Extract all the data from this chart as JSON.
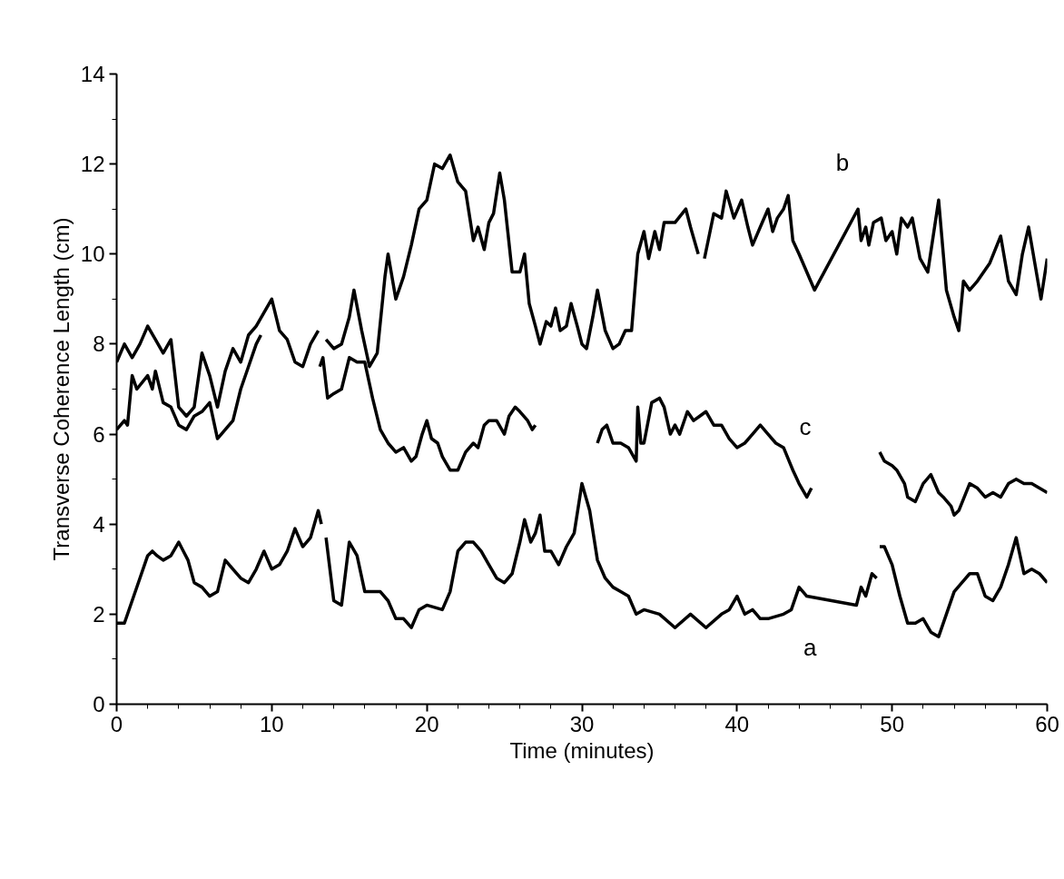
{
  "chart_data": {
    "type": "line",
    "xlabel": "Time (minutes)",
    "ylabel": "Transverse Coherence Length (cm)",
    "xlim": [
      0,
      60
    ],
    "xticks": [
      0,
      10,
      20,
      30,
      40,
      50,
      60
    ],
    "ylim": [
      0,
      14
    ],
    "yticks": [
      0,
      2,
      4,
      6,
      8,
      10,
      12,
      14
    ],
    "grid": false,
    "marker": "none",
    "line_style": "solid",
    "series": [
      {
        "name": "a",
        "color": "#000000",
        "x": [
          0,
          0.5,
          1,
          1.5,
          2,
          2.3,
          2.6,
          3,
          3.5,
          4,
          4.3,
          4.6,
          5,
          5.5,
          6,
          6.5,
          7,
          7.5,
          8,
          8.5,
          9,
          9.5,
          10,
          10.5,
          11,
          11.5,
          12,
          12.5,
          13,
          13.2,
          13.35,
          13.5,
          14,
          14.5,
          15,
          15.5,
          16,
          16.5,
          17,
          17.5,
          18,
          18.5,
          19,
          19.5,
          20,
          21,
          21.5,
          22,
          22.5,
          23,
          23.5,
          24,
          24.5,
          25,
          25.5,
          26,
          26.3,
          26.7,
          27,
          27.3,
          27.6,
          28,
          28.5,
          29,
          29.5,
          30,
          30.5,
          31,
          31.5,
          32,
          32.5,
          33,
          33.5,
          34,
          35,
          36,
          37,
          38,
          39,
          39.5,
          40,
          40.5,
          41,
          41.5,
          42,
          43,
          43.5,
          44,
          44.5,
          47.7,
          48,
          48.3,
          48.7,
          49,
          49.1,
          49.2,
          49.5,
          50,
          50.5,
          51,
          51.5,
          52,
          52.5,
          53,
          53.5,
          54,
          54.5,
          55,
          55.5,
          56,
          56.5,
          57,
          57.5,
          58,
          58.5,
          59,
          59.5,
          60
        ],
        "values": [
          1.8,
          1.8,
          2.3,
          2.8,
          3.3,
          3.4,
          3.3,
          3.2,
          3.3,
          3.6,
          3.4,
          3.2,
          2.7,
          2.6,
          2.4,
          2.5,
          3.2,
          3.0,
          2.8,
          2.7,
          3.0,
          3.4,
          3.0,
          3.1,
          3.4,
          3.9,
          3.5,
          3.7,
          4.3,
          4.0,
          null,
          3.7,
          2.3,
          2.2,
          3.6,
          3.3,
          2.5,
          2.5,
          2.5,
          2.3,
          1.9,
          1.9,
          1.7,
          2.1,
          2.2,
          2.1,
          2.5,
          3.4,
          3.6,
          3.6,
          3.4,
          3.1,
          2.8,
          2.7,
          2.9,
          3.6,
          4.1,
          3.6,
          3.8,
          4.2,
          3.4,
          3.4,
          3.1,
          3.5,
          3.8,
          4.9,
          4.3,
          3.2,
          2.8,
          2.6,
          2.5,
          2.4,
          2.0,
          2.1,
          2.0,
          1.7,
          2.0,
          1.7,
          2.0,
          2.1,
          2.4,
          2.0,
          2.1,
          1.9,
          1.9,
          2.0,
          2.1,
          2.6,
          2.4,
          2.2,
          2.6,
          2.4,
          2.9,
          2.8,
          null,
          3.5,
          3.5,
          3.1,
          2.4,
          1.8,
          1.8,
          1.9,
          1.6,
          1.5,
          2.0,
          2.5,
          2.7,
          2.9,
          2.9,
          2.4,
          2.3,
          2.6,
          3.1,
          3.7,
          2.9,
          3.0,
          2.9,
          2.7
        ]
      },
      {
        "name": "b",
        "color": "#000000",
        "x": [
          0,
          0.5,
          1,
          1.5,
          2,
          2.5,
          3,
          3.5,
          4,
          4.5,
          5,
          5.5,
          6,
          6.5,
          7,
          7.5,
          8,
          8.5,
          9,
          10,
          10.5,
          11,
          11.5,
          12,
          12.5,
          13,
          13.25,
          13.5,
          14,
          14.5,
          15,
          15.3,
          15.8,
          16.3,
          16.8,
          17.3,
          17.5,
          18,
          18.5,
          19,
          19.5,
          20,
          20.5,
          21,
          21.5,
          22,
          22.5,
          23,
          23.3,
          23.7,
          24,
          24.3,
          24.7,
          25,
          25.5,
          26,
          26.3,
          26.6,
          27,
          27.3,
          27.7,
          28,
          28.3,
          28.6,
          29,
          29.3,
          29.7,
          30,
          30.3,
          30.7,
          31,
          31.5,
          32,
          32.4,
          32.8,
          33.2,
          33.6,
          34,
          34.3,
          34.7,
          35,
          35.3,
          36,
          36.7,
          37,
          37.5,
          37.7,
          37.9,
          38.5,
          39,
          39.3,
          39.8,
          40.3,
          40.7,
          41,
          41.5,
          42,
          42.3,
          42.6,
          43,
          43.3,
          43.6,
          44,
          45,
          47.8,
          48,
          48.3,
          48.5,
          48.8,
          49.3,
          49.6,
          50,
          50.3,
          50.6,
          51,
          51.3,
          51.8,
          52.3,
          53,
          53.5,
          54,
          54.3,
          54.6,
          55,
          55.5,
          56.3,
          57,
          57.5,
          58,
          58.4,
          58.8,
          59.2,
          59.6,
          60
        ],
        "values": [
          7.6,
          8.0,
          7.7,
          8.0,
          8.4,
          8.1,
          7.8,
          8.1,
          6.6,
          6.4,
          6.6,
          7.8,
          7.3,
          6.6,
          7.4,
          7.9,
          7.6,
          8.2,
          8.4,
          9.0,
          8.3,
          8.1,
          7.6,
          7.5,
          8.0,
          8.3,
          null,
          8.1,
          7.9,
          8.0,
          8.6,
          9.2,
          8.3,
          7.5,
          7.8,
          9.5,
          10.0,
          9.0,
          9.5,
          10.2,
          11.0,
          11.2,
          12.0,
          11.9,
          12.2,
          11.6,
          11.4,
          10.3,
          10.6,
          10.1,
          10.7,
          10.9,
          11.8,
          11.2,
          9.6,
          9.6,
          10.0,
          8.9,
          8.4,
          8.0,
          8.5,
          8.4,
          8.8,
          8.3,
          8.4,
          8.9,
          8.4,
          8.0,
          7.9,
          8.6,
          9.2,
          8.3,
          7.9,
          8.0,
          8.3,
          8.3,
          10.0,
          10.5,
          9.9,
          10.5,
          10.1,
          10.7,
          10.7,
          11.0,
          10.6,
          10.0,
          null,
          9.9,
          10.9,
          10.8,
          11.4,
          10.8,
          11.2,
          10.6,
          10.2,
          10.6,
          11.0,
          10.5,
          10.8,
          11.0,
          11.3,
          10.3,
          10.0,
          9.2,
          11.0,
          10.3,
          10.6,
          10.2,
          10.7,
          10.8,
          10.3,
          10.5,
          10.0,
          10.8,
          10.6,
          10.8,
          9.9,
          9.6,
          11.2,
          9.2,
          8.6,
          8.3,
          9.4,
          9.2,
          9.4,
          9.8,
          10.4,
          9.4,
          9.1,
          10.0,
          10.6,
          9.8,
          9.0,
          9.9
        ]
      },
      {
        "name": "c",
        "color": "#000000",
        "x": [
          0,
          0.5,
          0.7,
          1,
          1.3,
          2,
          2.3,
          2.5,
          3,
          3.5,
          4,
          4.5,
          5,
          5.5,
          6,
          6.5,
          7,
          7.5,
          8,
          8.5,
          9,
          9.3,
          11,
          13.1,
          13.3,
          13.6,
          14,
          14.5,
          15,
          15.5,
          16,
          16.5,
          17,
          17.5,
          18,
          18.5,
          19,
          19.3,
          19.7,
          20,
          20.3,
          20.7,
          21,
          21.5,
          22,
          22.5,
          23,
          23.3,
          23.7,
          24,
          24.5,
          25,
          25.3,
          25.7,
          26,
          26.5,
          26.8,
          27,
          29,
          31,
          31.3,
          31.6,
          32,
          32.5,
          33,
          33.5,
          33.6,
          33.8,
          34,
          34.5,
          35,
          35.3,
          35.7,
          36,
          36.3,
          36.8,
          37.2,
          37.6,
          38,
          38.5,
          39,
          39.5,
          40,
          40.5,
          41,
          41.5,
          42,
          42.5,
          43,
          43.6,
          44,
          44.5,
          44.8,
          47,
          49.2,
          49.5,
          50,
          50.3,
          50.8,
          51,
          51.5,
          52,
          52.5,
          53,
          53.3,
          53.8,
          54,
          54.3,
          55,
          55.5,
          56,
          56.5,
          57,
          57.5,
          58,
          58.5,
          59,
          59.5,
          60
        ],
        "values": [
          6.1,
          6.3,
          6.2,
          7.3,
          7.0,
          7.3,
          7.0,
          7.4,
          6.7,
          6.6,
          6.2,
          6.1,
          6.4,
          6.5,
          6.7,
          5.9,
          6.1,
          6.3,
          7.0,
          7.5,
          8.0,
          8.2,
          null,
          7.5,
          7.7,
          6.8,
          6.9,
          7.0,
          7.7,
          7.6,
          7.6,
          6.8,
          6.1,
          5.8,
          5.6,
          5.7,
          5.4,
          5.5,
          6.0,
          6.3,
          5.9,
          5.8,
          5.5,
          5.2,
          5.2,
          5.6,
          5.8,
          5.7,
          6.2,
          6.3,
          6.3,
          6.0,
          6.4,
          6.6,
          6.5,
          6.3,
          6.1,
          6.2,
          null,
          5.8,
          6.1,
          6.2,
          5.8,
          5.8,
          5.7,
          5.4,
          6.6,
          5.8,
          5.8,
          6.7,
          6.8,
          6.6,
          6.0,
          6.2,
          6.0,
          6.5,
          6.3,
          6.4,
          6.5,
          6.2,
          6.2,
          5.9,
          5.7,
          5.8,
          6.0,
          6.2,
          6.0,
          5.8,
          5.7,
          5.2,
          4.9,
          4.6,
          4.8,
          null,
          5.6,
          5.4,
          5.3,
          5.2,
          4.9,
          4.6,
          4.5,
          4.9,
          5.1,
          4.7,
          4.6,
          4.4,
          4.2,
          4.3,
          4.9,
          4.8,
          4.6,
          4.7,
          4.6,
          4.9,
          5.0,
          4.9,
          4.9,
          4.8,
          4.7
        ]
      }
    ]
  }
}
